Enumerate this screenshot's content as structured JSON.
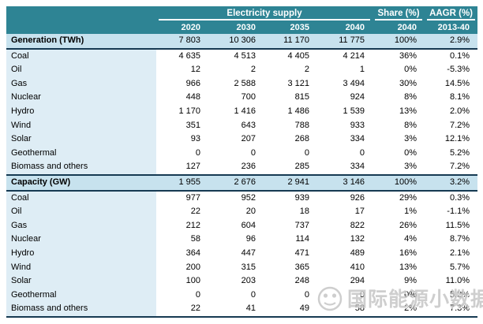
{
  "chart_data": {
    "type": "table",
    "header_groups": [
      {
        "label": "Electricity supply",
        "span": [
          "2020",
          "2030",
          "2035",
          "2040"
        ]
      },
      {
        "label": "Share (%)",
        "span": [
          "2040"
        ]
      },
      {
        "label": "AAGR (%)",
        "span": [
          "2013-40"
        ]
      }
    ],
    "columns": [
      "2020",
      "2030",
      "2035",
      "2040",
      "2040",
      "2013-40"
    ],
    "sections": [
      {
        "label": "Generation (TWh)",
        "totals": [
          "7 803",
          "10 306",
          "11 170",
          "11 775",
          "100%",
          "2.9%"
        ],
        "rows": [
          {
            "name": "Coal",
            "values": [
              "4 635",
              "4 513",
              "4 405",
              "4 214",
              "36%",
              "0.1%"
            ]
          },
          {
            "name": "Oil",
            "values": [
              "12",
              "2",
              "2",
              "1",
              "0%",
              "-5.3%"
            ]
          },
          {
            "name": "Gas",
            "values": [
              "966",
              "2 588",
              "3 121",
              "3 494",
              "30%",
              "14.5%"
            ]
          },
          {
            "name": "Nuclear",
            "values": [
              "448",
              "700",
              "815",
              "924",
              "8%",
              "8.1%"
            ]
          },
          {
            "name": "Hydro",
            "values": [
              "1 170",
              "1 416",
              "1 486",
              "1 539",
              "13%",
              "2.0%"
            ]
          },
          {
            "name": "Wind",
            "values": [
              "351",
              "643",
              "788",
              "933",
              "8%",
              "7.2%"
            ]
          },
          {
            "name": "Solar",
            "values": [
              "93",
              "207",
              "268",
              "334",
              "3%",
              "12.1%"
            ]
          },
          {
            "name": "Geothermal",
            "values": [
              "0",
              "0",
              "0",
              "0",
              "0%",
              "5.2%"
            ]
          },
          {
            "name": "Biomass and others",
            "values": [
              "127",
              "236",
              "285",
              "334",
              "3%",
              "7.2%"
            ]
          }
        ]
      },
      {
        "label": "Capacity (GW)",
        "totals": [
          "1 955",
          "2 676",
          "2 941",
          "3 146",
          "100%",
          "3.2%"
        ],
        "rows": [
          {
            "name": "Coal",
            "values": [
              "977",
              "952",
              "939",
              "926",
              "29%",
              "0.3%"
            ]
          },
          {
            "name": "Oil",
            "values": [
              "22",
              "20",
              "18",
              "17",
              "1%",
              "-1.1%"
            ]
          },
          {
            "name": "Gas",
            "values": [
              "212",
              "604",
              "737",
              "822",
              "26%",
              "11.5%"
            ]
          },
          {
            "name": "Nuclear",
            "values": [
              "58",
              "96",
              "114",
              "132",
              "4%",
              "8.7%"
            ]
          },
          {
            "name": "Hydro",
            "values": [
              "364",
              "447",
              "471",
              "489",
              "16%",
              "2.1%"
            ]
          },
          {
            "name": "Wind",
            "values": [
              "200",
              "315",
              "365",
              "410",
              "13%",
              "5.7%"
            ]
          },
          {
            "name": "Solar",
            "values": [
              "100",
              "203",
              "248",
              "294",
              "9%",
              "11.0%"
            ]
          },
          {
            "name": "Geothermal",
            "values": [
              "0",
              "0",
              "0",
              "0",
              "0%",
              "5.2%"
            ]
          },
          {
            "name": "Biomass and others",
            "values": [
              "22",
              "41",
              "49",
              "58",
              "2%",
              "7.3%"
            ]
          }
        ]
      }
    ]
  },
  "watermark": {
    "text": "国际能源小数据",
    "icon": "wechat-face-icon"
  },
  "colors": {
    "header_bg": "#2E8494",
    "section_bg": "#C7E2EE",
    "name_col_bg": "#DEEDF5",
    "border_dark": "#163A52",
    "header_text": "#FFFFFF",
    "watermark_gray": "#C2C2C2"
  }
}
